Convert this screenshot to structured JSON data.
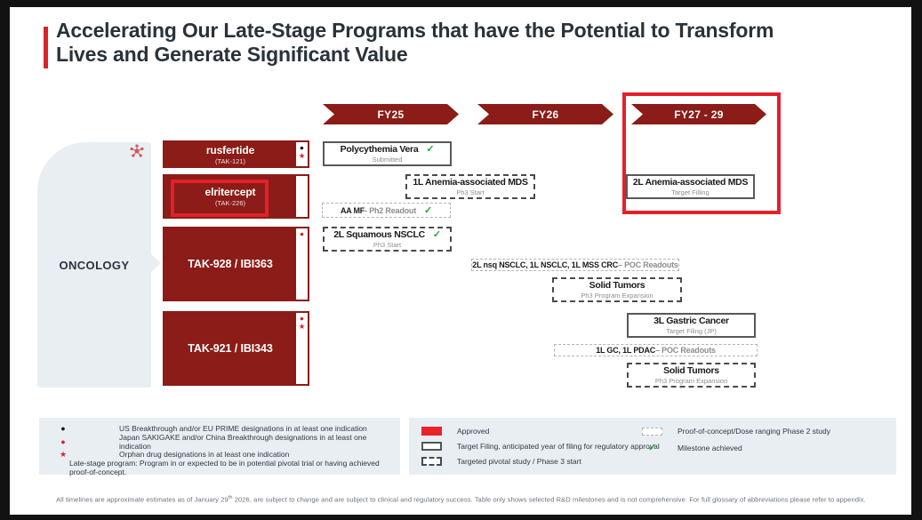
{
  "title": "Accelerating Our Late-Stage Programs that have the Potential to Transform Lives and Generate Significant Value",
  "glyphs": {
    "black_dot": "●",
    "red_dot": "●",
    "red_star": "★",
    "check": "✓"
  },
  "colors": {
    "brand_dark_red": "#8b1c17",
    "accent_red": "#e3202a",
    "approved_red": "#e8232a",
    "panel_gray": "#e9eef3",
    "green_check": "#23a638"
  },
  "timeline": {
    "columns": [
      {
        "label": "FY25"
      },
      {
        "label": "FY26"
      },
      {
        "label": "FY27 - 29"
      }
    ],
    "highlighted_column": "FY27 - 29"
  },
  "category": {
    "label": "ONCOLOGY",
    "icon": "cancer-cell-icon"
  },
  "programs": [
    {
      "name": "rusfertide",
      "code": "(TAK-121)",
      "highlighted": false,
      "markers": [
        {
          "name": "us-eu-designation-dot",
          "glyph": "●",
          "color": "black"
        },
        {
          "name": "orphan-drug-star",
          "glyph": "★",
          "color": "red"
        }
      ]
    },
    {
      "name": "elritercept",
      "code": "(TAK-226)",
      "highlighted": true,
      "markers": []
    },
    {
      "name": "TAK-928 / IBI363",
      "code": "",
      "highlighted": false,
      "markers": [
        {
          "name": "japan-china-designation-dot",
          "glyph": "●",
          "color": "red"
        }
      ]
    },
    {
      "name": "TAK-921 / IBI343",
      "code": "",
      "highlighted": false,
      "markers": [
        {
          "name": "japan-china-designation-dot",
          "glyph": "●",
          "color": "red"
        },
        {
          "name": "orphan-drug-star",
          "glyph": "★",
          "color": "red"
        }
      ]
    }
  ],
  "milestones": [
    {
      "title": "Polycythemia Vera",
      "sub": "Submitted",
      "type": "target-filing",
      "achieved": true
    },
    {
      "title": "1L Anemia-associated MDS",
      "sub": "Ph3 Start",
      "type": "pivotal-ph3",
      "achieved": false
    },
    {
      "title": "AA MF",
      "suffix": " - Ph2 Readout",
      "type": "poc-ph2",
      "achieved": true
    },
    {
      "title": "2L Squamous NSCLC",
      "sub": "Ph3 Start",
      "type": "pivotal-ph3",
      "achieved": true
    },
    {
      "title": "2L Anemia-associated MDS",
      "sub": "Target Filling",
      "type": "target-filing",
      "achieved": false
    },
    {
      "title": "2L nsq NSCLC, 1L NSCLC, 1L MSS CRC",
      "suffix": " – POC Readouts",
      "type": "poc-ph2",
      "achieved": false
    },
    {
      "title": "Solid Tumors",
      "sub": "Ph3 Program Expansion",
      "type": "pivotal-ph3",
      "achieved": false
    },
    {
      "title": "3L Gastric Cancer",
      "sub": "Target Filing (JP)",
      "type": "target-filing",
      "achieved": false
    },
    {
      "title": "1L GC, 1L PDAC",
      "suffix": " – POC Readouts",
      "type": "poc-ph2",
      "achieved": false
    },
    {
      "title": "Solid Tumors",
      "sub": "Ph3 Program Expansion",
      "type": "pivotal-ph3",
      "achieved": false
    }
  ],
  "legend_left": {
    "items": [
      {
        "marker": "black-dot",
        "text": "US Breakthrough and/or EU PRIME designations in at least one indication"
      },
      {
        "marker": "red-dot",
        "text": "Japan SAKIGAKE and/or China Breakthrough designations in at least one indication"
      },
      {
        "marker": "red-star",
        "text": "Orphan drug designations in at least one indication"
      }
    ],
    "note": "Late-stage program: Program in or expected to be in potential pivotal trial or having achieved proof-of-concept."
  },
  "legend_right": {
    "approved": "Approved",
    "target_filing": "Target Filing, anticipated year of filing for regulatory approval",
    "pivotal": "Targeted pivotal study / Phase 3 start",
    "poc": "Proof-of-concept/Dose ranging Phase 2 study",
    "milestone_achieved": "Milestone achieved"
  },
  "footer": {
    "part1": "All timelines are approximate estimates as of January 29",
    "sup": "th",
    "part2": " 2026, are subject to change and are subject to clinical and regulatory success. Table only shows selected R&D milestones and is not comprehensive. For full glossary of abbreviations please refer to appendix."
  }
}
